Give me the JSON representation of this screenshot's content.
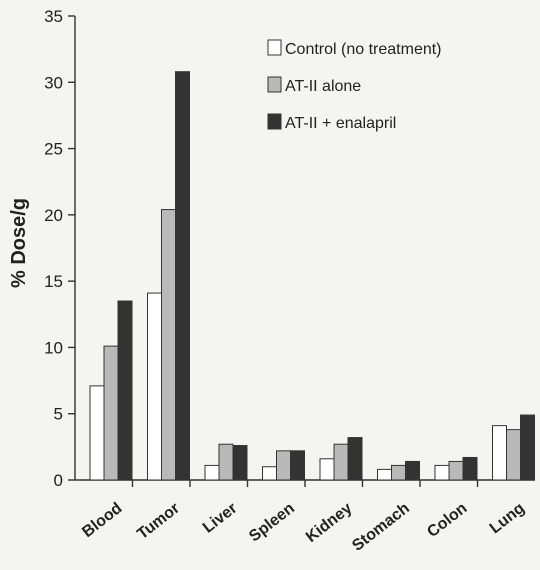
{
  "chart_data": {
    "type": "bar",
    "ylabel": "% Dose/g",
    "ylim": [
      0,
      35
    ],
    "yticks": [
      0,
      5,
      10,
      15,
      20,
      25,
      30,
      35
    ],
    "grid": false,
    "legend_position": "top-right",
    "categories": [
      "Blood",
      "Tumor",
      "Liver",
      "Spleen",
      "Kidney",
      "Stomach",
      "Colon",
      "Lung"
    ],
    "series": [
      {
        "name": "Control (no treatment)",
        "color": "#ffffff",
        "values": [
          7.1,
          14.1,
          1.1,
          1.0,
          1.6,
          0.8,
          1.1,
          4.1
        ]
      },
      {
        "name": "AT-II alone",
        "color": "#b9b9b9",
        "values": [
          10.1,
          20.4,
          2.7,
          2.2,
          2.7,
          1.1,
          1.4,
          3.8
        ]
      },
      {
        "name": "AT-II + enalapril",
        "color": "#333333",
        "values": [
          13.5,
          30.8,
          2.6,
          2.2,
          3.2,
          1.4,
          1.7,
          4.9
        ]
      }
    ]
  }
}
